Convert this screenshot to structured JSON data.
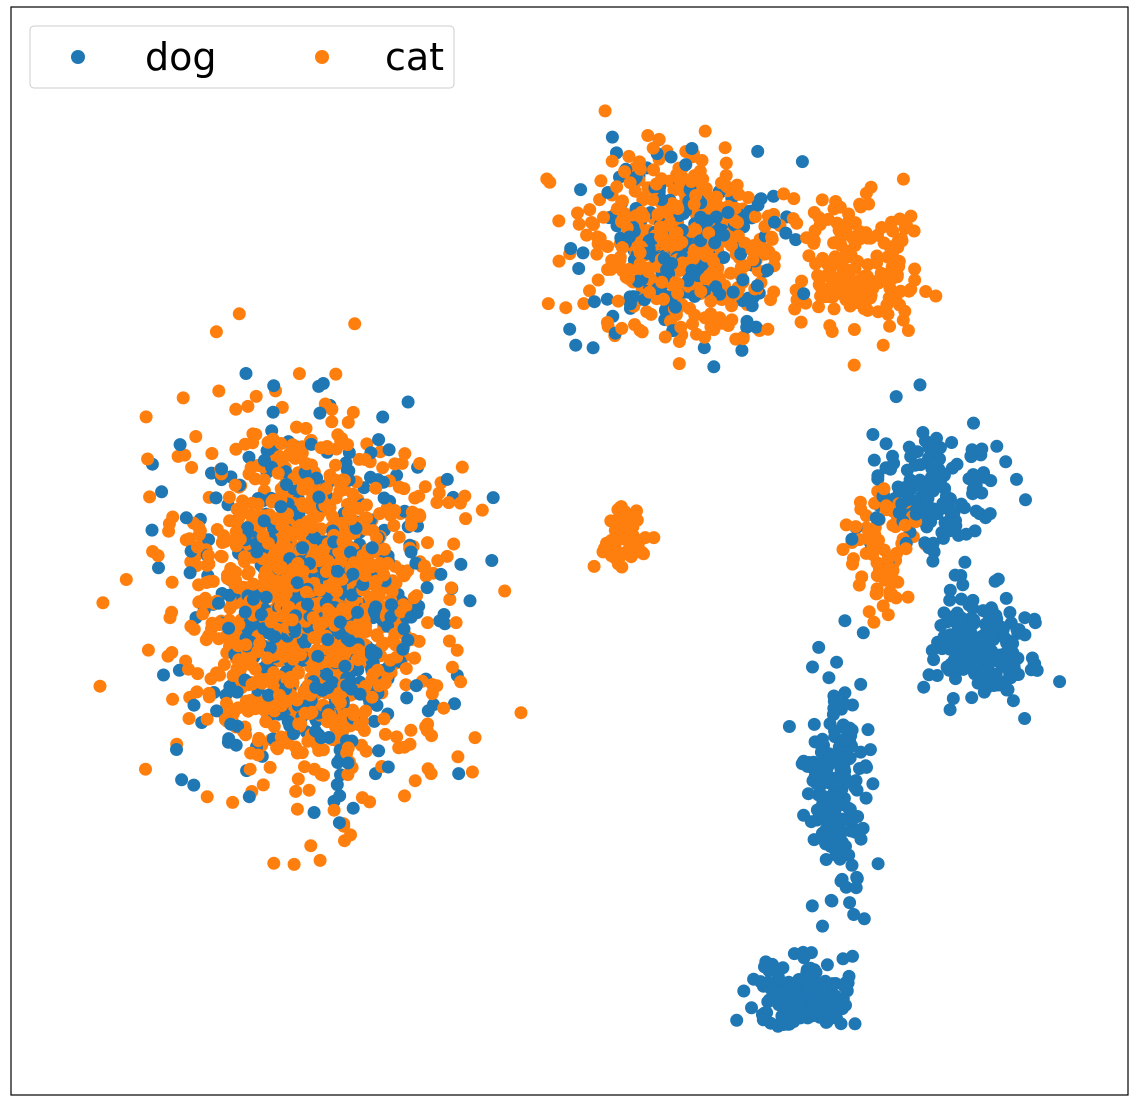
{
  "chart_data": {
    "type": "scatter",
    "title": "",
    "xlabel": "",
    "ylabel": "",
    "axes_visible": false,
    "grid": false,
    "legend_placement": "top-left",
    "legend_columns": 2,
    "xlim": [
      0,
      100
    ],
    "ylim": [
      0,
      100
    ],
    "series": [
      {
        "name": "dog",
        "color": "#1f77b4",
        "clusters": [
          {
            "center": [
              27,
              45
            ],
            "spread": [
              10,
              14
            ],
            "count": 520
          },
          {
            "center": [
              60,
              78
            ],
            "spread": [
              8,
              7
            ],
            "count": 230
          },
          {
            "center": [
              82,
              55
            ],
            "spread": [
              5,
              6
            ],
            "count": 170
          },
          {
            "center": [
              87,
              41
            ],
            "spread": [
              4,
              4
            ],
            "count": 200
          },
          {
            "center": [
              74,
              28
            ],
            "spread": [
              2.5,
              10
            ],
            "count": 180
          },
          {
            "center": [
              71,
              9
            ],
            "spread": [
              4,
              3
            ],
            "count": 190
          }
        ]
      },
      {
        "name": "cat",
        "color": "#ff7f0e",
        "clusters": [
          {
            "center": [
              27,
              45
            ],
            "spread": [
              10,
              14
            ],
            "count": 1150
          },
          {
            "center": [
              60,
              78
            ],
            "spread": [
              8,
              7
            ],
            "count": 430
          },
          {
            "center": [
              76,
              76
            ],
            "spread": [
              5,
              6
            ],
            "count": 160
          },
          {
            "center": [
              55,
              51
            ],
            "spread": [
              2,
              3
            ],
            "count": 60
          },
          {
            "center": [
              78,
              50
            ],
            "spread": [
              3,
              6
            ],
            "count": 70
          }
        ]
      }
    ]
  }
}
